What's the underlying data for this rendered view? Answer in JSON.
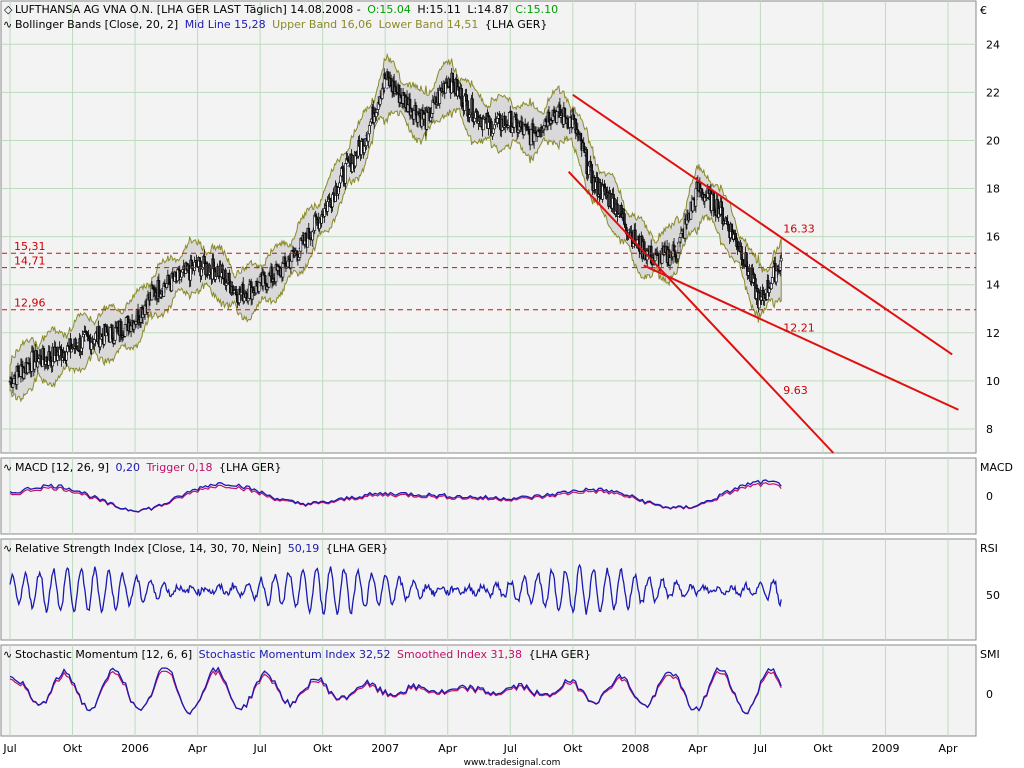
{
  "colors": {
    "panel_bg": "#f3f3f3",
    "grid": "#bcdcbc",
    "border": "#8a8a8a",
    "price_up": "#ffffff",
    "price_down": "#202020",
    "band_fill": "#d9d9d9",
    "band_line": "#8a8a2a",
    "trend": "#e01010",
    "support": "#cc1111",
    "macd": "#1a1ab0",
    "trigger": "#c0106a",
    "rsi": "#1a1ab0",
    "smi": "#1a1ab0",
    "smoothed": "#c0106a",
    "open": "#00a000",
    "close": "#00a000",
    "midline": "#1a1ab0",
    "upper": "#8a8a2a",
    "lower": "#8a8a2a"
  },
  "header": {
    "symbol_line": "LUFTHANSA AG VNA O.N. [LHA GER LAST Täglich] 14.08.2008 -",
    "open": "O:15.04",
    "high": "H:15.11",
    "low": "L:14.87",
    "close": "C:15.10",
    "bb_prefix": "Bollinger Bands [Close, 20, 2]",
    "bb_mid": "Mid Line 15,28",
    "bb_upper": "Upper Band 16,06",
    "bb_lower": "Lower Band 14,51",
    "bb_suffix": "{LHA GER}",
    "currency": "€"
  },
  "indicators": {
    "macd_prefix": "MACD [12, 26, 9]",
    "macd_value": "0,20",
    "macd_trigger": "Trigger 0,18",
    "macd_suffix": "{LHA GER}",
    "macd_axis": "MACD",
    "rsi_prefix": "Relative Strength Index [Close, 14, 30, 70, Nein]",
    "rsi_value": "50,19",
    "rsi_suffix": "{LHA GER}",
    "rsi_axis": "RSI",
    "smi_prefix": "Stochastic Momentum [12, 6, 6]",
    "smi_value": "Stochastic Momentum Index 32,52",
    "smi_smoothed": "Smoothed Index 31,38",
    "smi_suffix": "{LHA GER}",
    "smi_axis": "SMI"
  },
  "footer": {
    "source": "www.tradesignal.com"
  },
  "chart_data": {
    "type": "line",
    "title": "LUFTHANSA AG VNA O.N. [LHA GER LAST Täglich]",
    "currency": "€",
    "x_ticks": [
      "Jul",
      "Okt",
      "2006",
      "Apr",
      "Jul",
      "Okt",
      "2007",
      "Apr",
      "Jul",
      "Okt",
      "2008",
      "Apr",
      "Jul",
      "Okt",
      "2009",
      "Apr"
    ],
    "y_ticks": [
      8,
      10,
      12,
      14,
      16,
      18,
      20,
      22,
      24
    ],
    "ylim": [
      7.0,
      25.8
    ],
    "grid": true,
    "price_series": {
      "name": "LHA GER LAST",
      "points": [
        [
          "2005-07",
          10.0
        ],
        [
          "2005-08",
          10.8
        ],
        [
          "2005-09",
          11.0
        ],
        [
          "2005-10",
          11.4
        ],
        [
          "2005-11",
          11.8
        ],
        [
          "2005-12",
          12.0
        ],
        [
          "2006-01",
          12.6
        ],
        [
          "2006-02",
          13.8
        ],
        [
          "2006-03",
          14.2
        ],
        [
          "2006-04",
          14.8
        ],
        [
          "2006-05",
          14.6
        ],
        [
          "2006-06",
          13.6
        ],
        [
          "2006-07",
          14.0
        ],
        [
          "2006-08",
          14.6
        ],
        [
          "2006-09",
          15.6
        ],
        [
          "2006-10",
          17.0
        ],
        [
          "2006-11",
          18.6
        ],
        [
          "2006-12",
          20.0
        ],
        [
          "2007-01",
          22.6
        ],
        [
          "2007-02",
          21.6
        ],
        [
          "2007-03",
          20.8
        ],
        [
          "2007-04",
          22.6
        ],
        [
          "2007-05",
          21.4
        ],
        [
          "2007-06",
          20.6
        ],
        [
          "2007-07",
          20.8
        ],
        [
          "2007-08",
          20.2
        ],
        [
          "2007-09",
          21.2
        ],
        [
          "2007-10",
          20.8
        ],
        [
          "2007-11",
          18.2
        ],
        [
          "2007-12",
          17.4
        ],
        [
          "2008-01",
          15.8
        ],
        [
          "2008-02",
          15.0
        ],
        [
          "2008-03",
          15.4
        ],
        [
          "2008-04",
          18.0
        ],
        [
          "2008-05",
          17.2
        ],
        [
          "2008-06",
          15.6
        ],
        [
          "2008-07",
          13.2
        ],
        [
          "2008-08",
          15.1
        ]
      ]
    },
    "horizontal_levels": [
      {
        "value": 15.31,
        "label": "15,31"
      },
      {
        "value": 14.71,
        "label": "14,71"
      },
      {
        "value": 12.96,
        "label": "12,96"
      }
    ],
    "annotations": [
      {
        "text": "16.33",
        "x": "2008-08",
        "y": 16.33
      },
      {
        "text": "12.21",
        "x": "2008-08",
        "y": 12.21
      },
      {
        "text": "9.63",
        "x": "2008-08",
        "y": 9.63
      }
    ],
    "macd": {
      "ylabel": "MACD",
      "y_ticks": [
        0
      ],
      "macd": 0.2,
      "trigger": 0.18
    },
    "rsi": {
      "ylabel": "RSI",
      "y_ticks": [
        50
      ],
      "value": 50.19
    },
    "smi": {
      "ylabel": "SMI",
      "y_ticks": [
        0
      ],
      "smi": 32.52,
      "smoothed": 31.38
    }
  }
}
